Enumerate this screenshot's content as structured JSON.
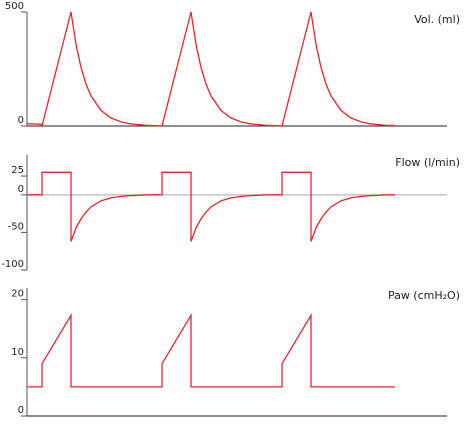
{
  "chart_data": [
    {
      "type": "line",
      "title": "Vol. (ml)",
      "xlim": [
        0,
        420
      ],
      "ylim": [
        0,
        500
      ],
      "yticks": [
        0,
        500
      ],
      "x": [
        0,
        14,
        15,
        44,
        49,
        54,
        59,
        64,
        74,
        84,
        94,
        104,
        119,
        134,
        135,
        164,
        169,
        174,
        179,
        184,
        194,
        204,
        214,
        224,
        239,
        254,
        255,
        284,
        289,
        294,
        299,
        304,
        314,
        324,
        334,
        344,
        359,
        368
      ],
      "series": [
        {
          "color": "#e8262a",
          "values": [
            10,
            8,
            0,
            500,
            358,
            257,
            184,
            132,
            68,
            35,
            18,
            9,
            3,
            1,
            0,
            500,
            358,
            257,
            184,
            132,
            68,
            35,
            18,
            9,
            3,
            1,
            0,
            500,
            358,
            257,
            184,
            132,
            68,
            35,
            18,
            9,
            3,
            2
          ]
        }
      ]
    },
    {
      "type": "line",
      "title": "Flow (l/min)",
      "xlim": [
        0,
        420
      ],
      "ylim": [
        -100,
        53
      ],
      "yticks": [
        -100,
        -50,
        0,
        25
      ],
      "x": [
        0,
        15,
        15,
        44,
        44,
        49,
        54,
        59,
        64,
        74,
        84,
        94,
        104,
        119,
        135,
        135,
        164,
        164,
        169,
        174,
        179,
        184,
        194,
        204,
        214,
        224,
        239,
        255,
        255,
        284,
        284,
        289,
        294,
        299,
        304,
        314,
        324,
        334,
        344,
        359,
        368
      ],
      "series": [
        {
          "color": "#e8262a",
          "values": [
            0,
            0,
            30,
            30,
            -62,
            -44,
            -32,
            -23,
            -16,
            -8,
            -4,
            -2,
            -1,
            0,
            0,
            30,
            30,
            -62,
            -44,
            -32,
            -23,
            -16,
            -8,
            -4,
            -2,
            -1,
            0,
            0,
            30,
            30,
            -62,
            -44,
            -32,
            -23,
            -16,
            -8,
            -4,
            -2,
            -1,
            0,
            0
          ]
        }
      ]
    },
    {
      "type": "line",
      "title": "Paw (cmH₂O)",
      "xlim": [
        0,
        420
      ],
      "ylim": [
        0,
        22
      ],
      "yticks": [
        0,
        10,
        20
      ],
      "x": [
        0,
        15,
        15,
        44,
        44,
        135,
        135,
        164,
        164,
        255,
        255,
        284,
        284,
        368
      ],
      "series": [
        {
          "color": "#e8262a",
          "values": [
            5,
            5,
            9,
            17.3,
            5,
            5,
            9,
            17.3,
            5,
            5,
            9,
            17.3,
            5,
            5
          ]
        }
      ]
    }
  ]
}
